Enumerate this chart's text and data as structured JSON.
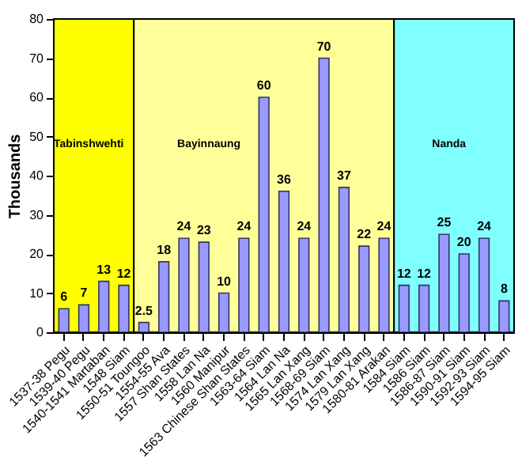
{
  "chart_data": {
    "type": "bar",
    "ylabel": "Thousands",
    "categories": [
      "1537-38 Pegu",
      "1539-40 Pegu",
      "1540-1541 Martaban",
      "1548 Siam",
      "1550-51 Toungoo",
      "1554-55 Ava",
      "1557 Shan States",
      "1558 Lan Na",
      "1560 Manipur",
      "1563 Chinese Shan States",
      "1563-64 Siam",
      "1564 Lan Na",
      "1565 Lan Xang",
      "1568-69 Siam",
      "1574 Lan Xang",
      "1579 Lan Xang",
      "1580-81 Arakan",
      "1584 Siam",
      "1586 Siam",
      "1586-87 Siam",
      "1590-91 Siam",
      "1592-93 Siam",
      "1594-95 Siam"
    ],
    "values": [
      6,
      7,
      13,
      12,
      2.5,
      18,
      24,
      23,
      10,
      24,
      60,
      36,
      24,
      70,
      37,
      22,
      24,
      12,
      12,
      25,
      20,
      24,
      8
    ],
    "color": "#9999ff",
    "data_labels": true,
    "ylim": [
      0,
      80
    ],
    "yticks": [
      0,
      10,
      20,
      30,
      40,
      50,
      60,
      70,
      80
    ],
    "bands": [
      {
        "axis": "x",
        "from": "1537-38 Pegu",
        "to": "1548 Siam",
        "label": "Tabinshwehti",
        "color": "#ffff00"
      },
      {
        "axis": "x",
        "from": "1550-51 Toungoo",
        "to": "1580-81 Arakan",
        "label": "Bayinnaung",
        "color": "#ffff99"
      },
      {
        "axis": "x",
        "from": "1584 Siam",
        "to": "1594-95 Siam",
        "label": "Nanda",
        "color": "#80ffff"
      }
    ]
  }
}
